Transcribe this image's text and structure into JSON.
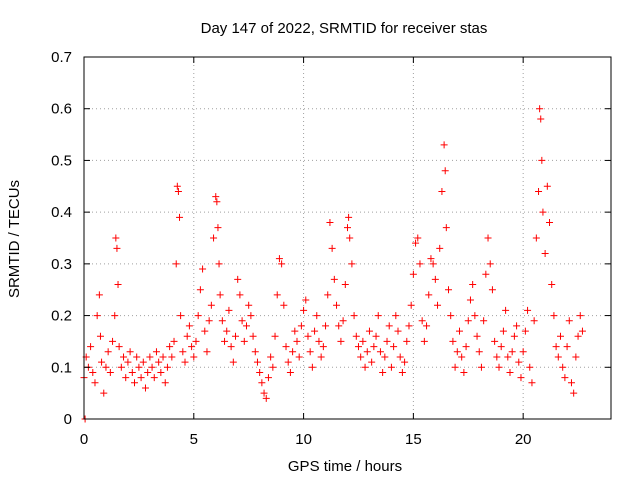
{
  "chart_data": {
    "type": "scatter",
    "title": "Day 147 of 2022, SRMTID for receiver stas",
    "xlabel": "GPS time / hours",
    "ylabel": "SRMTID / TECUs",
    "xlim": [
      0,
      24
    ],
    "ylim": [
      0,
      0.7
    ],
    "xticks": [
      0,
      5,
      10,
      15,
      20
    ],
    "xtick_labels": [
      "0",
      "5",
      "10",
      "15",
      "20"
    ],
    "yticks": [
      0,
      0.1,
      0.2,
      0.3,
      0.4,
      0.5,
      0.6,
      0.7
    ],
    "ytick_labels": [
      "0",
      "0.1",
      "0.2",
      "0.3",
      "0.4",
      "0.5",
      "0.6",
      "0.7"
    ],
    "grid": true,
    "marker": "+",
    "color": "#ff0000",
    "series": [
      {
        "name": "SRMTID",
        "x": [
          0.0,
          0.05,
          0.1,
          0.2,
          0.3,
          0.4,
          0.5,
          0.6,
          0.7,
          0.75,
          0.8,
          0.9,
          1.0,
          1.1,
          1.2,
          1.3,
          1.4,
          1.45,
          1.5,
          1.55,
          1.6,
          1.7,
          1.8,
          1.9,
          2.0,
          2.1,
          2.2,
          2.3,
          2.4,
          2.5,
          2.6,
          2.7,
          2.8,
          2.9,
          3.0,
          3.1,
          3.2,
          3.3,
          3.4,
          3.5,
          3.6,
          3.7,
          3.8,
          3.9,
          4.0,
          4.1,
          4.2,
          4.25,
          4.3,
          4.35,
          4.4,
          4.5,
          4.6,
          4.7,
          4.8,
          4.9,
          5.0,
          5.1,
          5.2,
          5.3,
          5.4,
          5.5,
          5.6,
          5.7,
          5.8,
          5.9,
          6.0,
          6.05,
          6.1,
          6.15,
          6.2,
          6.3,
          6.4,
          6.5,
          6.6,
          6.7,
          6.8,
          6.9,
          7.0,
          7.1,
          7.2,
          7.3,
          7.4,
          7.5,
          7.6,
          7.7,
          7.8,
          7.9,
          8.0,
          8.1,
          8.2,
          8.3,
          8.4,
          8.5,
          8.6,
          8.7,
          8.8,
          8.9,
          9.0,
          9.1,
          9.2,
          9.3,
          9.4,
          9.5,
          9.6,
          9.7,
          9.8,
          9.9,
          10.0,
          10.1,
          10.2,
          10.3,
          10.4,
          10.5,
          10.6,
          10.7,
          10.8,
          10.9,
          11.0,
          11.1,
          11.2,
          11.3,
          11.4,
          11.5,
          11.6,
          11.7,
          11.8,
          11.9,
          12.0,
          12.05,
          12.1,
          12.2,
          12.3,
          12.4,
          12.5,
          12.6,
          12.7,
          12.8,
          12.9,
          13.0,
          13.1,
          13.2,
          13.3,
          13.4,
          13.5,
          13.6,
          13.7,
          13.8,
          13.9,
          14.0,
          14.1,
          14.2,
          14.3,
          14.4,
          14.5,
          14.6,
          14.7,
          14.8,
          14.9,
          15.0,
          15.1,
          15.2,
          15.3,
          15.4,
          15.5,
          15.6,
          15.7,
          15.8,
          15.9,
          16.0,
          16.1,
          16.2,
          16.3,
          16.4,
          16.45,
          16.5,
          16.6,
          16.7,
          16.8,
          16.9,
          17.0,
          17.1,
          17.2,
          17.3,
          17.4,
          17.5,
          17.6,
          17.7,
          17.8,
          17.9,
          18.0,
          18.1,
          18.2,
          18.3,
          18.4,
          18.5,
          18.6,
          18.7,
          18.8,
          18.9,
          19.0,
          19.1,
          19.2,
          19.3,
          19.4,
          19.5,
          19.6,
          19.7,
          19.8,
          19.9,
          20.0,
          20.1,
          20.2,
          20.3,
          20.4,
          20.5,
          20.6,
          20.7,
          20.75,
          20.8,
          20.85,
          20.9,
          21.0,
          21.1,
          21.2,
          21.3,
          21.4,
          21.5,
          21.6,
          21.7,
          21.8,
          21.9,
          22.0,
          22.1,
          22.2,
          22.3,
          22.4,
          22.5,
          22.6,
          22.7
        ],
        "y": [
          0.08,
          0.0,
          0.12,
          0.1,
          0.14,
          0.09,
          0.07,
          0.2,
          0.24,
          0.16,
          0.11,
          0.05,
          0.1,
          0.13,
          0.09,
          0.15,
          0.2,
          0.35,
          0.33,
          0.26,
          0.14,
          0.1,
          0.12,
          0.08,
          0.11,
          0.13,
          0.09,
          0.07,
          0.12,
          0.1,
          0.08,
          0.11,
          0.06,
          0.09,
          0.12,
          0.1,
          0.08,
          0.13,
          0.11,
          0.09,
          0.12,
          0.07,
          0.1,
          0.14,
          0.12,
          0.15,
          0.3,
          0.45,
          0.44,
          0.39,
          0.2,
          0.13,
          0.11,
          0.16,
          0.18,
          0.14,
          0.12,
          0.15,
          0.2,
          0.25,
          0.29,
          0.17,
          0.13,
          0.19,
          0.22,
          0.35,
          0.43,
          0.42,
          0.37,
          0.3,
          0.24,
          0.19,
          0.15,
          0.17,
          0.21,
          0.14,
          0.11,
          0.16,
          0.27,
          0.24,
          0.19,
          0.15,
          0.18,
          0.22,
          0.2,
          0.16,
          0.13,
          0.11,
          0.09,
          0.07,
          0.05,
          0.04,
          0.08,
          0.12,
          0.1,
          0.16,
          0.24,
          0.31,
          0.3,
          0.22,
          0.14,
          0.11,
          0.09,
          0.13,
          0.17,
          0.15,
          0.12,
          0.18,
          0.21,
          0.23,
          0.16,
          0.13,
          0.1,
          0.17,
          0.2,
          0.15,
          0.12,
          0.14,
          0.18,
          0.24,
          0.38,
          0.33,
          0.27,
          0.22,
          0.18,
          0.15,
          0.19,
          0.26,
          0.37,
          0.39,
          0.35,
          0.3,
          0.2,
          0.16,
          0.14,
          0.12,
          0.15,
          0.1,
          0.13,
          0.17,
          0.11,
          0.14,
          0.16,
          0.2,
          0.13,
          0.09,
          0.12,
          0.15,
          0.18,
          0.1,
          0.14,
          0.2,
          0.17,
          0.12,
          0.09,
          0.11,
          0.15,
          0.18,
          0.22,
          0.28,
          0.34,
          0.35,
          0.3,
          0.19,
          0.15,
          0.18,
          0.24,
          0.31,
          0.3,
          0.27,
          0.22,
          0.33,
          0.44,
          0.53,
          0.48,
          0.37,
          0.25,
          0.2,
          0.15,
          0.1,
          0.13,
          0.17,
          0.12,
          0.09,
          0.14,
          0.19,
          0.23,
          0.26,
          0.2,
          0.16,
          0.13,
          0.1,
          0.19,
          0.28,
          0.35,
          0.3,
          0.25,
          0.15,
          0.12,
          0.1,
          0.14,
          0.17,
          0.21,
          0.12,
          0.09,
          0.13,
          0.16,
          0.18,
          0.11,
          0.08,
          0.13,
          0.17,
          0.21,
          0.1,
          0.07,
          0.19,
          0.35,
          0.44,
          0.6,
          0.58,
          0.5,
          0.4,
          0.32,
          0.45,
          0.38,
          0.26,
          0.2,
          0.14,
          0.12,
          0.16,
          0.1,
          0.08,
          0.14,
          0.19,
          0.07,
          0.05,
          0.12,
          0.16,
          0.2,
          0.17
        ]
      }
    ]
  }
}
